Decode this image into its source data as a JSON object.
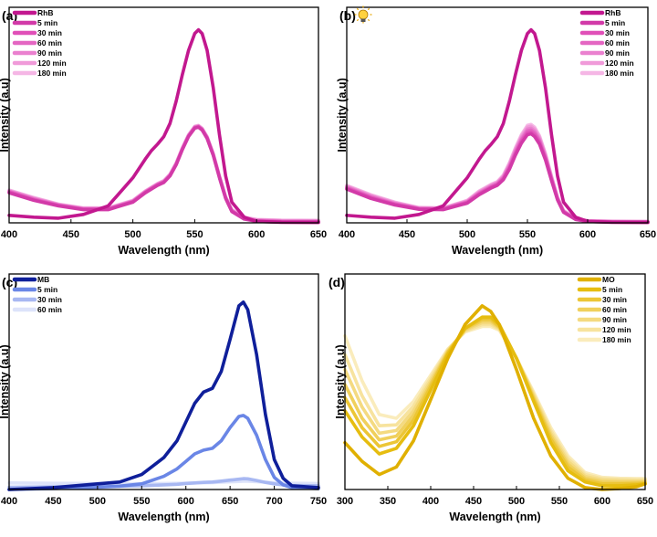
{
  "chart_data": [
    {
      "panel": "(a)",
      "type": "line",
      "xlabel": "Wavelength (nm)",
      "ylabel": "Intensity (a.u)",
      "xlim": [
        400,
        650
      ],
      "xticks": [
        400,
        450,
        500,
        550,
        600,
        650
      ],
      "ylim": [
        0,
        1.15
      ],
      "grid": false,
      "legend_position": "top-left",
      "x": [
        400,
        420,
        440,
        460,
        480,
        500,
        510,
        515,
        520,
        525,
        530,
        535,
        540,
        545,
        550,
        553,
        556,
        560,
        565,
        570,
        575,
        580,
        590,
        600,
        620,
        650
      ],
      "series": [
        {
          "name": "RhB",
          "color": "#c2188f",
          "values": [
            0.04,
            0.03,
            0.025,
            0.045,
            0.09,
            0.24,
            0.34,
            0.385,
            0.42,
            0.46,
            0.53,
            0.65,
            0.79,
            0.92,
            1.01,
            1.03,
            1.01,
            0.92,
            0.72,
            0.47,
            0.25,
            0.11,
            0.03,
            0.008,
            0.003,
            0.002
          ]
        },
        {
          "name": "5 min",
          "color": "#d23aa8",
          "values": [
            0.16,
            0.12,
            0.09,
            0.07,
            0.07,
            0.11,
            0.16,
            0.18,
            0.2,
            0.215,
            0.25,
            0.31,
            0.39,
            0.46,
            0.505,
            0.51,
            0.495,
            0.45,
            0.36,
            0.24,
            0.13,
            0.06,
            0.02,
            0.008,
            0.004,
            0.003
          ]
        },
        {
          "name": "30 min",
          "color": "#e050b8",
          "values": [
            0.163,
            0.123,
            0.092,
            0.072,
            0.072,
            0.112,
            0.162,
            0.182,
            0.202,
            0.217,
            0.252,
            0.312,
            0.392,
            0.462,
            0.507,
            0.512,
            0.497,
            0.452,
            0.362,
            0.242,
            0.132,
            0.062,
            0.022,
            0.01,
            0.006,
            0.005
          ]
        },
        {
          "name": "60 min",
          "color": "#e466c2",
          "values": [
            0.166,
            0.126,
            0.094,
            0.074,
            0.074,
            0.114,
            0.164,
            0.184,
            0.204,
            0.219,
            0.254,
            0.314,
            0.394,
            0.464,
            0.509,
            0.514,
            0.499,
            0.454,
            0.364,
            0.244,
            0.134,
            0.064,
            0.024,
            0.012,
            0.008,
            0.007
          ]
        },
        {
          "name": "90 min",
          "color": "#ea80cf",
          "values": [
            0.169,
            0.129,
            0.096,
            0.076,
            0.076,
            0.116,
            0.166,
            0.186,
            0.206,
            0.221,
            0.256,
            0.316,
            0.396,
            0.466,
            0.511,
            0.516,
            0.501,
            0.456,
            0.366,
            0.246,
            0.136,
            0.066,
            0.026,
            0.014,
            0.01,
            0.009
          ]
        },
        {
          "name": "120 min",
          "color": "#f09ad9",
          "values": [
            0.172,
            0.132,
            0.098,
            0.078,
            0.078,
            0.118,
            0.168,
            0.188,
            0.208,
            0.223,
            0.258,
            0.318,
            0.398,
            0.468,
            0.513,
            0.518,
            0.503,
            0.458,
            0.368,
            0.248,
            0.138,
            0.068,
            0.028,
            0.016,
            0.012,
            0.011
          ]
        },
        {
          "name": "180 min",
          "color": "#f5b6e5",
          "values": [
            0.175,
            0.135,
            0.1,
            0.08,
            0.08,
            0.12,
            0.17,
            0.19,
            0.21,
            0.225,
            0.26,
            0.32,
            0.4,
            0.47,
            0.515,
            0.52,
            0.505,
            0.46,
            0.37,
            0.25,
            0.14,
            0.07,
            0.03,
            0.018,
            0.014,
            0.013
          ]
        }
      ]
    },
    {
      "panel": "(b)",
      "type": "line",
      "icon": "lightbulb-icon",
      "xlabel": "Wavelength (nm)",
      "ylabel": "Intensity (a.u)",
      "xlim": [
        400,
        650
      ],
      "xticks": [
        400,
        450,
        500,
        550,
        600,
        650
      ],
      "ylim": [
        0,
        1.15
      ],
      "grid": false,
      "legend_position": "top-right",
      "x": [
        400,
        420,
        440,
        460,
        480,
        500,
        510,
        515,
        520,
        525,
        530,
        535,
        540,
        545,
        550,
        553,
        556,
        560,
        565,
        570,
        575,
        580,
        590,
        600,
        620,
        650
      ],
      "series": [
        {
          "name": "RhB",
          "color": "#c2188f",
          "values": [
            0.04,
            0.03,
            0.025,
            0.045,
            0.09,
            0.24,
            0.34,
            0.385,
            0.42,
            0.46,
            0.53,
            0.65,
            0.79,
            0.92,
            1.01,
            1.03,
            1.01,
            0.92,
            0.72,
            0.47,
            0.25,
            0.11,
            0.03,
            0.008,
            0.003,
            0.002
          ]
        },
        {
          "name": "5 min",
          "color": "#d23aa8",
          "values": [
            0.18,
            0.13,
            0.095,
            0.072,
            0.07,
            0.105,
            0.15,
            0.168,
            0.186,
            0.2,
            0.23,
            0.285,
            0.36,
            0.425,
            0.47,
            0.475,
            0.46,
            0.42,
            0.335,
            0.225,
            0.122,
            0.056,
            0.018,
            0.007,
            0.004,
            0.003
          ]
        },
        {
          "name": "30 min",
          "color": "#e050b8",
          "values": [
            0.184,
            0.134,
            0.098,
            0.074,
            0.072,
            0.108,
            0.154,
            0.172,
            0.19,
            0.204,
            0.235,
            0.292,
            0.368,
            0.434,
            0.48,
            0.485,
            0.47,
            0.429,
            0.342,
            0.23,
            0.125,
            0.058,
            0.019,
            0.008,
            0.005,
            0.004
          ]
        },
        {
          "name": "60 min",
          "color": "#e466c2",
          "values": [
            0.188,
            0.138,
            0.101,
            0.076,
            0.074,
            0.111,
            0.158,
            0.176,
            0.194,
            0.208,
            0.24,
            0.299,
            0.376,
            0.443,
            0.49,
            0.495,
            0.48,
            0.438,
            0.349,
            0.235,
            0.128,
            0.06,
            0.02,
            0.009,
            0.006,
            0.005
          ]
        },
        {
          "name": "90 min",
          "color": "#ea80cf",
          "values": [
            0.192,
            0.142,
            0.104,
            0.078,
            0.076,
            0.114,
            0.162,
            0.18,
            0.198,
            0.212,
            0.245,
            0.306,
            0.384,
            0.452,
            0.5,
            0.505,
            0.49,
            0.447,
            0.356,
            0.24,
            0.131,
            0.062,
            0.021,
            0.01,
            0.007,
            0.006
          ]
        },
        {
          "name": "120 min",
          "color": "#f09ad9",
          "values": [
            0.196,
            0.146,
            0.107,
            0.08,
            0.078,
            0.117,
            0.166,
            0.184,
            0.202,
            0.216,
            0.25,
            0.313,
            0.392,
            0.461,
            0.51,
            0.515,
            0.5,
            0.456,
            0.363,
            0.245,
            0.134,
            0.064,
            0.022,
            0.011,
            0.008,
            0.007
          ]
        },
        {
          "name": "180 min",
          "color": "#f5b6e5",
          "values": [
            0.2,
            0.15,
            0.11,
            0.082,
            0.08,
            0.12,
            0.17,
            0.188,
            0.206,
            0.22,
            0.255,
            0.32,
            0.4,
            0.47,
            0.52,
            0.525,
            0.51,
            0.465,
            0.37,
            0.25,
            0.137,
            0.066,
            0.023,
            0.012,
            0.009,
            0.008
          ]
        }
      ]
    },
    {
      "panel": "(c)",
      "type": "line",
      "xlabel": "Wavelength (nm)",
      "ylabel": "Intensity (a.u)",
      "xlim": [
        400,
        750
      ],
      "xticks": [
        400,
        450,
        500,
        550,
        600,
        650,
        700,
        750
      ],
      "ylim": [
        0,
        1.15
      ],
      "grid": false,
      "legend_position": "top-left",
      "x": [
        400,
        450,
        500,
        525,
        550,
        575,
        590,
        600,
        610,
        620,
        630,
        640,
        650,
        660,
        665,
        670,
        680,
        690,
        700,
        710,
        720,
        750
      ],
      "series": [
        {
          "name": "MB",
          "color": "#0f1f9a",
          "values": [
            0.0,
            0.01,
            0.03,
            0.04,
            0.08,
            0.17,
            0.26,
            0.36,
            0.46,
            0.52,
            0.54,
            0.63,
            0.8,
            0.98,
            1.0,
            0.96,
            0.72,
            0.4,
            0.16,
            0.06,
            0.02,
            0.01
          ]
        },
        {
          "name": "5 min",
          "color": "#6a86e6",
          "values": [
            0.0,
            0.005,
            0.012,
            0.018,
            0.03,
            0.07,
            0.11,
            0.15,
            0.19,
            0.21,
            0.22,
            0.26,
            0.33,
            0.39,
            0.395,
            0.38,
            0.29,
            0.16,
            0.065,
            0.025,
            0.01,
            0.005
          ]
        },
        {
          "name": "30 min",
          "color": "#a8b8f2",
          "values": [
            0.012,
            0.014,
            0.016,
            0.018,
            0.02,
            0.025,
            0.028,
            0.032,
            0.035,
            0.038,
            0.04,
            0.045,
            0.05,
            0.055,
            0.058,
            0.057,
            0.048,
            0.038,
            0.03,
            0.025,
            0.022,
            0.02
          ]
        },
        {
          "name": "60 min",
          "color": "#dde3fa",
          "values": [
            0.035,
            0.033,
            0.032,
            0.031,
            0.031,
            0.032,
            0.033,
            0.034,
            0.035,
            0.036,
            0.037,
            0.039,
            0.041,
            0.043,
            0.044,
            0.044,
            0.042,
            0.039,
            0.036,
            0.034,
            0.033,
            0.032
          ]
        }
      ]
    },
    {
      "panel": "(d)",
      "type": "line",
      "xlabel": "Wavelength (nm)",
      "ylabel": "Intensity (a.u)",
      "xlim": [
        300,
        650
      ],
      "xticks": [
        300,
        350,
        400,
        450,
        500,
        550,
        600,
        650
      ],
      "ylim": [
        0,
        1.15
      ],
      "grid": false,
      "legend_position": "top-right",
      "x": [
        300,
        320,
        340,
        360,
        380,
        400,
        420,
        440,
        460,
        470,
        480,
        500,
        520,
        540,
        560,
        580,
        600,
        620,
        640,
        650
      ],
      "series": [
        {
          "name": "MO",
          "color": "#e0b000",
          "values": [
            0.25,
            0.15,
            0.08,
            0.12,
            0.26,
            0.48,
            0.7,
            0.88,
            0.98,
            0.95,
            0.88,
            0.64,
            0.38,
            0.18,
            0.06,
            0.01,
            0.0,
            0.005,
            0.015,
            0.03
          ]
        },
        {
          "name": "5 min",
          "color": "#e6bd10",
          "values": [
            0.42,
            0.28,
            0.19,
            0.22,
            0.34,
            0.53,
            0.72,
            0.86,
            0.92,
            0.92,
            0.88,
            0.7,
            0.47,
            0.25,
            0.1,
            0.04,
            0.02,
            0.02,
            0.025,
            0.03
          ]
        },
        {
          "name": "30 min",
          "color": "#ecc636",
          "values": [
            0.49,
            0.33,
            0.23,
            0.255,
            0.37,
            0.55,
            0.73,
            0.86,
            0.91,
            0.91,
            0.87,
            0.7,
            0.48,
            0.27,
            0.12,
            0.05,
            0.03,
            0.03,
            0.032,
            0.034
          ]
        },
        {
          "name": "60 min",
          "color": "#f0d05c",
          "values": [
            0.56,
            0.38,
            0.265,
            0.285,
            0.395,
            0.565,
            0.735,
            0.855,
            0.9,
            0.9,
            0.865,
            0.7,
            0.49,
            0.285,
            0.135,
            0.06,
            0.04,
            0.038,
            0.038,
            0.04
          ]
        },
        {
          "name": "90 min",
          "color": "#f4da80",
          "values": [
            0.64,
            0.44,
            0.3,
            0.315,
            0.42,
            0.58,
            0.74,
            0.85,
            0.89,
            0.89,
            0.86,
            0.7,
            0.5,
            0.3,
            0.15,
            0.07,
            0.05,
            0.046,
            0.045,
            0.046
          ]
        },
        {
          "name": "120 min",
          "color": "#f7e39e",
          "values": [
            0.72,
            0.5,
            0.34,
            0.345,
            0.445,
            0.595,
            0.745,
            0.845,
            0.88,
            0.88,
            0.855,
            0.7,
            0.51,
            0.315,
            0.165,
            0.08,
            0.058,
            0.054,
            0.052,
            0.052
          ]
        },
        {
          "name": "180 min",
          "color": "#faecbc",
          "values": [
            0.82,
            0.58,
            0.4,
            0.38,
            0.47,
            0.61,
            0.75,
            0.84,
            0.87,
            0.87,
            0.85,
            0.7,
            0.52,
            0.33,
            0.18,
            0.09,
            0.065,
            0.06,
            0.058,
            0.058
          ]
        }
      ]
    }
  ]
}
